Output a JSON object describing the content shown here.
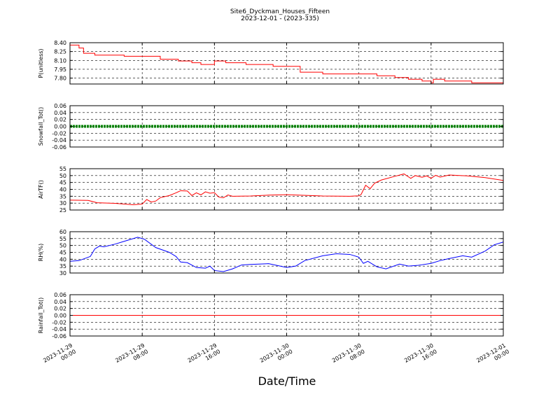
{
  "chart_data": {
    "type": "line",
    "title": "Site6_Dyckman_Houses_Fifteen",
    "subtitle": "2023-12-01 - (2023-335)",
    "xlabel": "Date/Time",
    "x_range": [
      "2023-11-29 00:00",
      "2023-12-01 00:00"
    ],
    "x_ticks": [
      {
        "time": "2023-11-29 00:00",
        "line1": "2023-11-29",
        "line2": "00:00"
      },
      {
        "time": "2023-11-29 08:00",
        "line1": "2023-11-29",
        "line2": "08:00"
      },
      {
        "time": "2023-11-29 16:00",
        "line1": "2023-11-29",
        "line2": "16:00"
      },
      {
        "time": "2023-11-30 00:00",
        "line1": "2023-11-30",
        "line2": "00:00"
      },
      {
        "time": "2023-11-30 08:00",
        "line1": "2023-11-30",
        "line2": "08:00"
      },
      {
        "time": "2023-11-30 16:00",
        "line1": "2023-11-30",
        "line2": "16:00"
      },
      {
        "time": "2023-12-01 00:00",
        "line1": "2023-12-01",
        "line2": "00:00"
      }
    ],
    "grid": true,
    "panels": [
      {
        "ylabel": "P(unitless)",
        "ylim": [
          7.7,
          8.4
        ],
        "yticks": [
          "8.40",
          "8.25",
          "8.10",
          "7.95",
          "7.80"
        ],
        "ytick_values": [
          8.4,
          8.25,
          8.1,
          7.95,
          7.8
        ],
        "color": "#ff0000",
        "step": true,
        "points": [
          [
            "2023-11-29 00:00",
            8.36
          ],
          [
            "2023-11-29 01:00",
            8.31
          ],
          [
            "2023-11-29 01:30",
            8.22
          ],
          [
            "2023-11-29 02:30",
            8.22
          ],
          [
            "2023-11-29 02:45",
            8.19
          ],
          [
            "2023-11-29 06:00",
            8.17
          ],
          [
            "2023-11-29 10:00",
            8.12
          ],
          [
            "2023-11-29 12:00",
            8.09
          ],
          [
            "2023-11-29 13:30",
            8.06
          ],
          [
            "2023-11-29 14:30",
            8.03
          ],
          [
            "2023-11-29 16:00",
            8.09
          ],
          [
            "2023-11-29 17:15",
            8.06
          ],
          [
            "2023-11-29 19:30",
            8.03
          ],
          [
            "2023-11-29 22:30",
            8.0
          ],
          [
            "2023-11-30 01:30",
            7.9
          ],
          [
            "2023-11-30 04:00",
            7.87
          ],
          [
            "2023-11-30 10:00",
            7.84
          ],
          [
            "2023-11-30 12:00",
            7.81
          ],
          [
            "2023-11-30 13:30",
            7.78
          ],
          [
            "2023-11-30 15:00",
            7.75
          ],
          [
            "2023-11-30 16:00",
            7.72
          ],
          [
            "2023-11-30 16:15",
            7.78
          ],
          [
            "2023-11-30 17:30",
            7.75
          ],
          [
            "2023-11-30 20:30",
            7.72
          ],
          [
            "2023-12-01 00:00",
            7.72
          ]
        ]
      },
      {
        "ylabel": "Snowfall_Tot()",
        "ylim": [
          -0.06,
          0.06
        ],
        "yticks": [
          "0.06",
          "0.04",
          "0.02",
          "0.00",
          "-0.02",
          "-0.04",
          "-0.06"
        ],
        "ytick_values": [
          0.06,
          0.04,
          0.02,
          0.0,
          -0.02,
          -0.04,
          -0.06
        ],
        "color": "#008000",
        "thick": true,
        "points": [
          [
            "2023-11-29 00:00",
            0.0
          ],
          [
            "2023-12-01 00:00",
            0.0
          ]
        ]
      },
      {
        "ylabel": "AirTF()",
        "ylim": [
          25,
          55
        ],
        "yticks": [
          "55",
          "50",
          "45",
          "40",
          "35",
          "30",
          "25"
        ],
        "ytick_values": [
          55,
          50,
          45,
          40,
          35,
          30,
          25
        ],
        "color": "#ff0000",
        "points": [
          [
            "2023-11-29 00:00",
            32.2
          ],
          [
            "2023-11-29 02:00",
            32.0
          ],
          [
            "2023-11-29 03:00",
            30.3
          ],
          [
            "2023-11-29 05:00",
            29.8
          ],
          [
            "2023-11-29 07:00",
            28.8
          ],
          [
            "2023-11-29 08:00",
            29.3
          ],
          [
            "2023-11-29 08:30",
            32.6
          ],
          [
            "2023-11-29 09:00",
            30.8
          ],
          [
            "2023-11-29 09:30",
            31.5
          ],
          [
            "2023-11-29 10:00",
            34.0
          ],
          [
            "2023-11-29 11:00",
            35.5
          ],
          [
            "2023-11-29 11:45",
            37.5
          ],
          [
            "2023-11-29 12:15",
            39.0
          ],
          [
            "2023-11-29 13:00",
            38.8
          ],
          [
            "2023-11-29 13:30",
            35.5
          ],
          [
            "2023-11-29 14:00",
            37.5
          ],
          [
            "2023-11-29 14:30",
            36.0
          ],
          [
            "2023-11-29 15:00",
            38.2
          ],
          [
            "2023-11-29 15:30",
            37.2
          ],
          [
            "2023-11-29 16:00",
            37.6
          ],
          [
            "2023-11-29 16:30",
            34.3
          ],
          [
            "2023-11-29 17:00",
            33.9
          ],
          [
            "2023-11-29 17:30",
            35.9
          ],
          [
            "2023-11-29 18:00",
            35.0
          ],
          [
            "2023-11-29 20:00",
            35.2
          ],
          [
            "2023-11-29 22:00",
            35.8
          ],
          [
            "2023-11-30 00:00",
            36.1
          ],
          [
            "2023-11-30 04:00",
            35.2
          ],
          [
            "2023-11-30 07:00",
            35.0
          ],
          [
            "2023-11-30 08:00",
            35.3
          ],
          [
            "2023-11-30 08:15",
            36.3
          ],
          [
            "2023-11-30 08:45",
            43.0
          ],
          [
            "2023-11-30 09:15",
            40.5
          ],
          [
            "2023-11-30 09:45",
            44.5
          ],
          [
            "2023-11-30 10:30",
            46.8
          ],
          [
            "2023-11-30 12:00",
            49.5
          ],
          [
            "2023-11-30 13:00",
            51.2
          ],
          [
            "2023-11-30 13:45",
            48.0
          ],
          [
            "2023-11-30 14:15",
            50.0
          ],
          [
            "2023-11-30 15:00",
            48.8
          ],
          [
            "2023-11-30 15:30",
            49.8
          ],
          [
            "2023-11-30 16:00",
            48.0
          ],
          [
            "2023-11-30 16:30",
            50.2
          ],
          [
            "2023-11-30 17:00",
            48.9
          ],
          [
            "2023-11-30 18:00",
            50.4
          ],
          [
            "2023-11-30 20:00",
            49.8
          ],
          [
            "2023-11-30 22:00",
            48.5
          ],
          [
            "2023-12-01 00:00",
            46.5
          ]
        ]
      },
      {
        "ylabel": "RH(%)",
        "ylim": [
          30,
          60
        ],
        "yticks": [
          "60",
          "55",
          "50",
          "45",
          "40",
          "35",
          "30"
        ],
        "ytick_values": [
          60,
          55,
          50,
          45,
          40,
          35,
          30
        ],
        "color": "#0000ff",
        "points": [
          [
            "2023-11-29 00:00",
            38.5
          ],
          [
            "2023-11-29 01:00",
            39.0
          ],
          [
            "2023-11-29 02:15",
            42.0
          ],
          [
            "2023-11-29 02:45",
            47.5
          ],
          [
            "2023-11-29 03:15",
            49.5
          ],
          [
            "2023-11-29 03:45",
            49.0
          ],
          [
            "2023-11-29 05:00",
            51.0
          ],
          [
            "2023-11-29 06:00",
            53.0
          ],
          [
            "2023-11-29 07:30",
            56.0
          ],
          [
            "2023-11-29 08:15",
            54.5
          ],
          [
            "2023-11-29 09:30",
            48.5
          ],
          [
            "2023-11-29 11:00",
            45.0
          ],
          [
            "2023-11-29 11:45",
            42.0
          ],
          [
            "2023-11-29 12:15",
            38.0
          ],
          [
            "2023-11-29 13:00",
            37.5
          ],
          [
            "2023-11-29 14:00",
            34.0
          ],
          [
            "2023-11-29 15:00",
            33.5
          ],
          [
            "2023-11-29 15:30",
            35.0
          ],
          [
            "2023-11-29 16:00",
            31.8
          ],
          [
            "2023-11-29 17:00",
            31.0
          ],
          [
            "2023-11-29 18:00",
            33.0
          ],
          [
            "2023-11-29 19:00",
            35.8
          ],
          [
            "2023-11-29 20:00",
            36.2
          ],
          [
            "2023-11-29 22:00",
            36.8
          ],
          [
            "2023-11-30 00:00",
            34.0
          ],
          [
            "2023-11-30 01:00",
            35.0
          ],
          [
            "2023-11-30 02:00",
            39.0
          ],
          [
            "2023-11-30 04:00",
            42.5
          ],
          [
            "2023-11-30 05:30",
            44.0
          ],
          [
            "2023-11-30 07:00",
            43.5
          ],
          [
            "2023-11-30 08:00",
            41.5
          ],
          [
            "2023-11-30 08:30",
            37.0
          ],
          [
            "2023-11-30 09:00",
            38.5
          ],
          [
            "2023-11-30 10:00",
            34.5
          ],
          [
            "2023-11-30 11:00",
            33.0
          ],
          [
            "2023-11-30 12:30",
            36.5
          ],
          [
            "2023-11-30 13:30",
            35.0
          ],
          [
            "2023-11-30 14:30",
            35.5
          ],
          [
            "2023-11-30 16:00",
            37.0
          ],
          [
            "2023-11-30 17:00",
            39.0
          ],
          [
            "2023-11-30 18:00",
            40.5
          ],
          [
            "2023-11-30 19:30",
            42.5
          ],
          [
            "2023-11-30 20:30",
            41.5
          ],
          [
            "2023-11-30 22:00",
            46.0
          ],
          [
            "2023-11-30 23:00",
            50.5
          ],
          [
            "2023-12-01 00:00",
            52.5
          ]
        ]
      },
      {
        "ylabel": "Rainfall_Tot()",
        "ylim": [
          -0.06,
          0.06
        ],
        "yticks": [
          "0.06",
          "0.04",
          "0.02",
          "0.00",
          "-0.02",
          "-0.04",
          "-0.06"
        ],
        "ytick_values": [
          0.06,
          0.04,
          0.02,
          0.0,
          -0.02,
          -0.04,
          -0.06
        ],
        "color": "#ff0000",
        "points": [
          [
            "2023-11-29 00:00",
            0.0
          ],
          [
            "2023-12-01 00:00",
            0.0
          ]
        ]
      }
    ]
  }
}
